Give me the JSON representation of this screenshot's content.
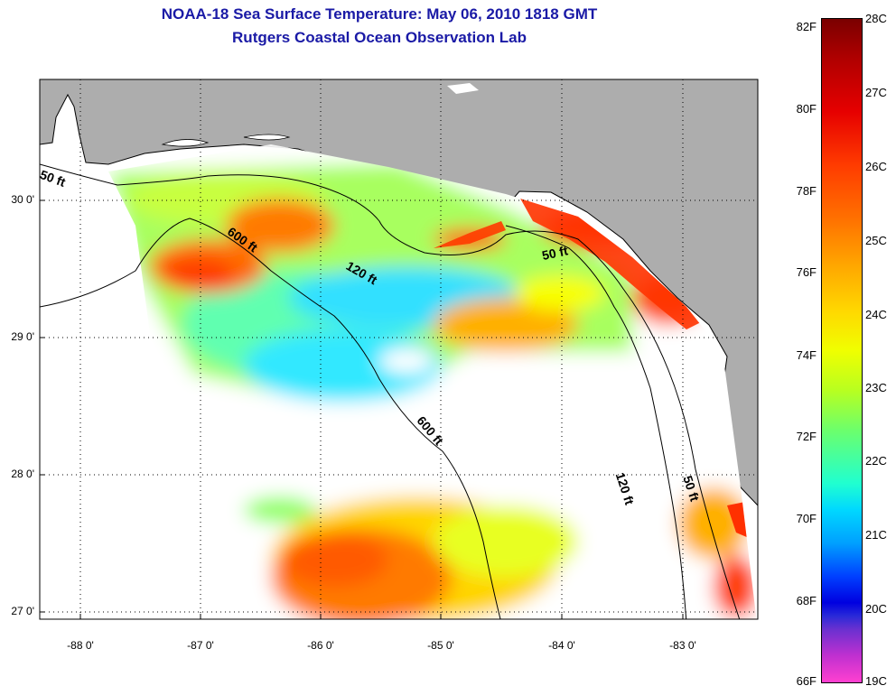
{
  "title_line1": "NOAA-18 Sea Surface Temperature:  May 06, 2010 1818 GMT",
  "title_line2": "Rutgers Coastal Ocean Observation Lab",
  "x_ticks": [
    "-88 0'",
    "-87 0'",
    "-86 0'",
    "-85 0'",
    "-84 0'",
    "-83 0'"
  ],
  "y_ticks": [
    "30 0'",
    "29 0'",
    "28 0'",
    "27 0'"
  ],
  "contour_labels": [
    "50 ft",
    "600 ft",
    "120 ft",
    "50 ft",
    "600 ft",
    "120 ft",
    "50 ft"
  ],
  "colorbar_f": [
    "82F",
    "80F",
    "78F",
    "76F",
    "74F",
    "72F",
    "70F",
    "68F",
    "66F"
  ],
  "colorbar_c": [
    "28C",
    "27C",
    "26C",
    "25C",
    "24C",
    "23C",
    "22C",
    "21C",
    "20C",
    "19C"
  ],
  "colors": {
    "land": "#adadad",
    "title": "#1a1aa6"
  }
}
